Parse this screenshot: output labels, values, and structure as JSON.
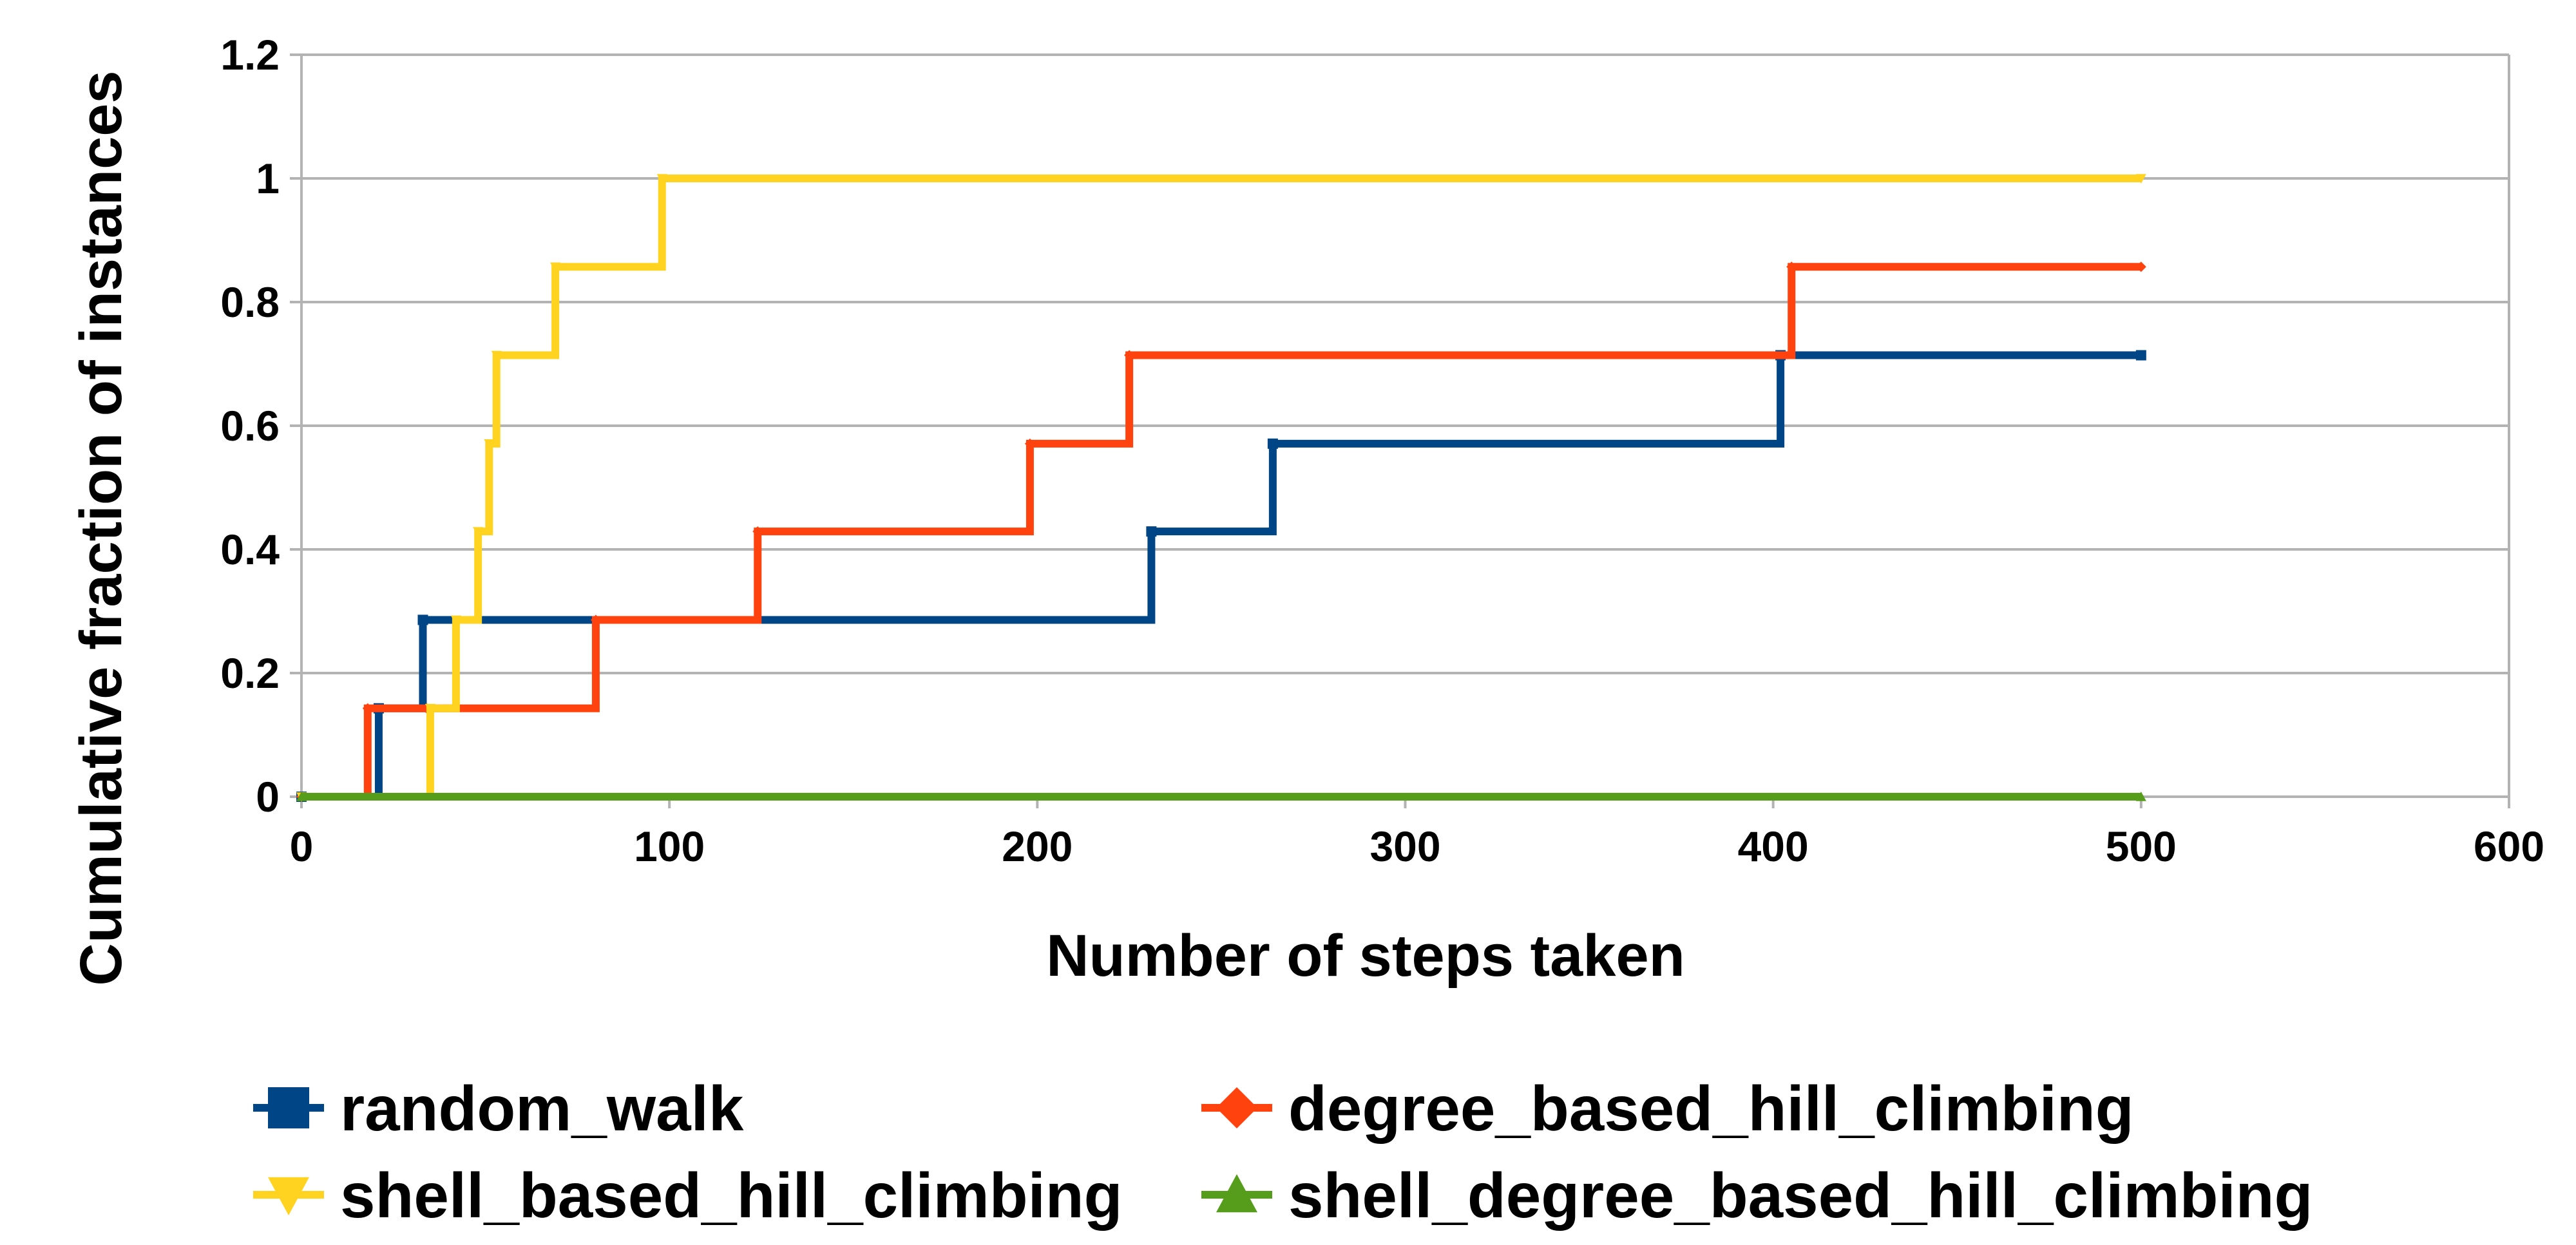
{
  "chart_data": {
    "type": "line",
    "title": "",
    "xlabel": "Number of steps taken",
    "ylabel": "Cumulative fraction of instances",
    "xlim": [
      0,
      600
    ],
    "ylim": [
      0,
      1.2
    ],
    "x_ticks": [
      0,
      100,
      200,
      300,
      400,
      500,
      600
    ],
    "y_ticks": [
      0,
      0.2,
      0.4,
      0.6,
      0.8,
      1,
      1.2
    ],
    "x_tick_labels": [
      "0",
      "100",
      "200",
      "300",
      "400",
      "500",
      "600"
    ],
    "y_tick_labels": [
      "0",
      "0.2",
      "0.4",
      "0.6",
      "0.8",
      "1",
      "1.2"
    ],
    "grid": "horizontal",
    "legend_position": "bottom",
    "series": [
      {
        "name": "random_walk",
        "color": "#004586",
        "marker": "square",
        "step": true,
        "x": [
          0,
          21,
          33,
          231,
          264,
          402,
          500
        ],
        "y": [
          0,
          0.143,
          0.286,
          0.429,
          0.571,
          0.714,
          0.714
        ]
      },
      {
        "name": "degree_based_hill_climbing",
        "color": "#ff420e",
        "marker": "diamond",
        "step": true,
        "x": [
          0,
          18,
          34,
          80,
          124,
          198,
          225,
          405,
          500
        ],
        "y": [
          0,
          0.143,
          0.143,
          0.286,
          0.429,
          0.571,
          0.714,
          0.857,
          0.857
        ]
      },
      {
        "name": "shell_based_hill_climbing",
        "color": "#ffd320",
        "marker": "triangle-down",
        "step": true,
        "x": [
          0,
          35,
          42,
          48,
          51,
          53,
          69,
          98,
          500
        ],
        "y": [
          0,
          0.143,
          0.286,
          0.429,
          0.571,
          0.714,
          0.857,
          1,
          1
        ]
      },
      {
        "name": "shell_degree_based_hill_climbing",
        "color": "#579d1c",
        "marker": "triangle-up",
        "step": true,
        "x": [
          0,
          500
        ],
        "y": [
          0,
          0
        ]
      }
    ]
  }
}
